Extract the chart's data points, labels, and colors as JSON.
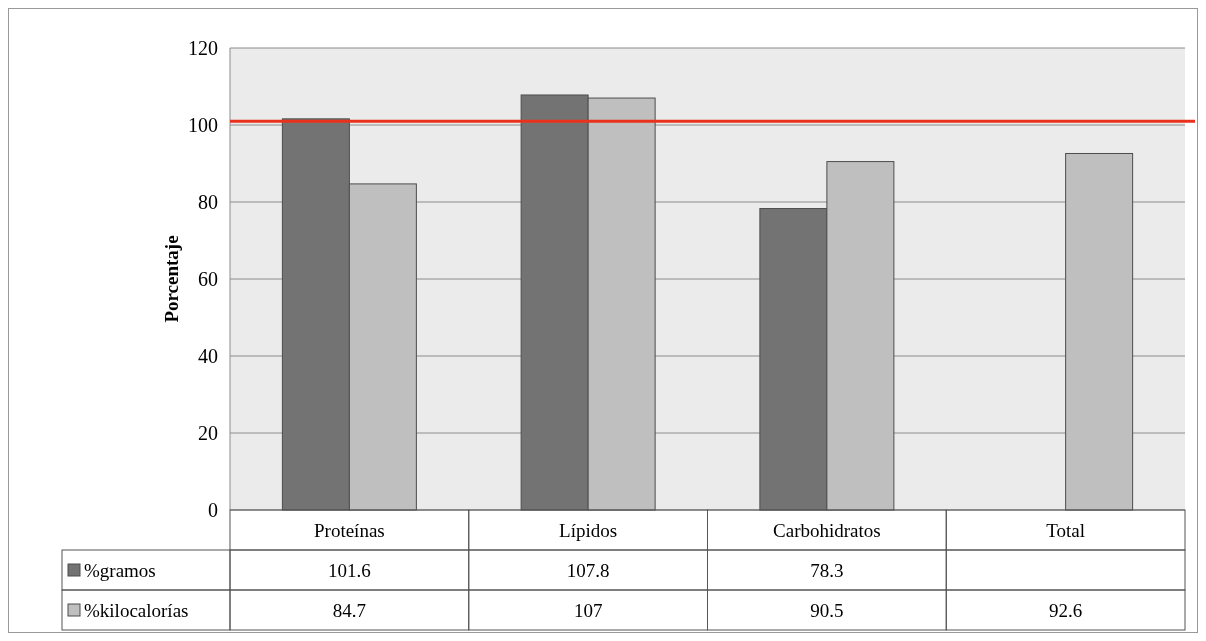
{
  "chart_data": {
    "type": "bar",
    "ylabel": "Porcentaje",
    "categories": [
      "Proteínas",
      "Lípidos",
      "Carbohidratos",
      "Total"
    ],
    "series": [
      {
        "name": "%gramos",
        "color": "#737373",
        "values": [
          101.6,
          107.8,
          78.3,
          null
        ]
      },
      {
        "name": "%kilocalorías",
        "color": "#bfbfbf",
        "values": [
          84.7,
          107,
          90.5,
          92.6
        ]
      }
    ],
    "ylim": [
      0,
      120
    ],
    "yticks": [
      0,
      20,
      40,
      60,
      80,
      100,
      120
    ],
    "grid": "y",
    "legend": "bottom",
    "data_labels": true,
    "ref_lines": [
      {
        "axis": "y",
        "value": 101,
        "color": "#e8321e"
      }
    ]
  }
}
